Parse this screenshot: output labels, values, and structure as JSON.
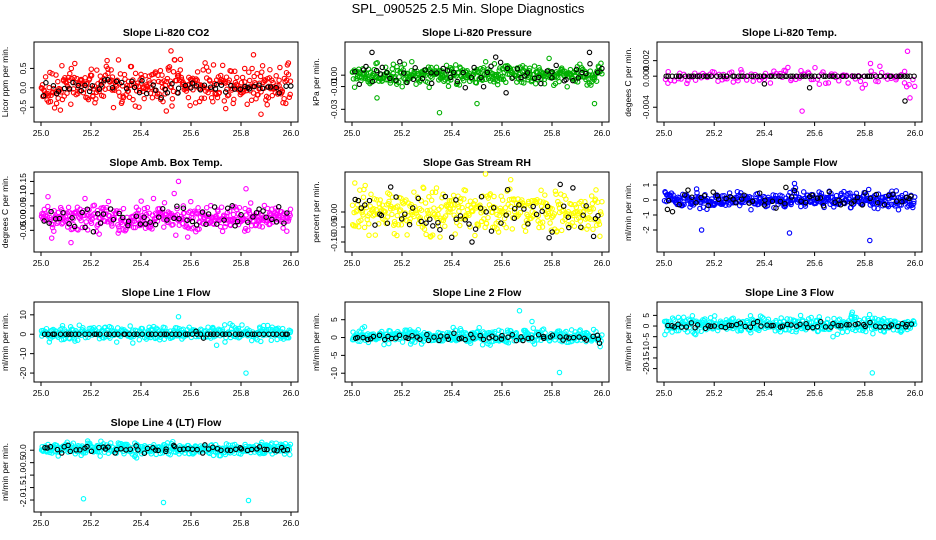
{
  "page": {
    "title": "SPL_090525  2.5 Min. Slope Diagnostics"
  },
  "chart_data": [
    {
      "type": "scatter",
      "title": "Slope Li-820 CO2",
      "xlabel": "",
      "ylabel": "Licor ppm per min.",
      "xlim": [
        25.0,
        26.0
      ],
      "ylim": [
        -0.7,
        1.0
      ],
      "xticks": [
        "25.0",
        "25.2",
        "25.4",
        "25.6",
        "25.8",
        "26.0"
      ],
      "yticks": [
        "-0.5",
        "0.0",
        "0.5"
      ],
      "series": [
        {
          "color": "#ff0000",
          "generator": {
            "center": 0.05,
            "spread": 0.25,
            "n": 400,
            "outliers": [
              [
                25.52,
                0.95
              ],
              [
                25.85,
                0.85
              ],
              [
                25.88,
                -0.68
              ]
            ]
          }
        },
        {
          "color": "#000000",
          "generator": {
            "center": 0.0,
            "spread": 0.12,
            "n": 60,
            "outliers": []
          }
        }
      ]
    },
    {
      "type": "scatter",
      "title": "Slope Li-820 Pressure",
      "xlabel": "",
      "ylabel": "kPa per min.",
      "xlim": [
        25.0,
        26.0
      ],
      "ylim": [
        -0.035,
        0.023
      ],
      "xticks": [
        "25.0",
        "25.2",
        "25.4",
        "25.6",
        "25.8",
        "26.0"
      ],
      "yticks": [
        "-0.03",
        "-0.01",
        "0.00"
      ],
      "series": [
        {
          "color": "#00b000",
          "generator": {
            "center": 0.0,
            "spread": 0.004,
            "n": 400,
            "outliers": [
              [
                25.1,
                -0.02
              ],
              [
                25.5,
                -0.025
              ],
              [
                25.97,
                -0.025
              ],
              [
                25.35,
                -0.033
              ]
            ]
          }
        },
        {
          "color": "#000000",
          "generator": {
            "center": 0.002,
            "spread": 0.006,
            "n": 60,
            "outliers": [
              [
                25.08,
                0.02
              ],
              [
                25.95,
                0.02
              ]
            ]
          }
        }
      ]
    },
    {
      "type": "scatter",
      "title": "Slope Li-820 Temp.",
      "xlabel": "",
      "ylabel": "degees C per min.",
      "xlim": [
        25.0,
        26.0
      ],
      "ylim": [
        -0.005,
        0.0035
      ],
      "xticks": [
        "25.0",
        "25.2",
        "25.4",
        "25.6",
        "25.8",
        "26.0"
      ],
      "yticks": [
        "-0.004",
        "0.000",
        "0.002"
      ],
      "series": [
        {
          "color": "#ff00ff",
          "generator": {
            "center": 0.0,
            "spread": 0.0006,
            "n": 120,
            "outliers": [
              [
                25.97,
                0.0032
              ],
              [
                25.98,
                -0.0028
              ],
              [
                25.55,
                -0.0045
              ]
            ]
          }
        },
        {
          "color": "#000000",
          "generator": {
            "center": 0.0,
            "spread": 0.0,
            "n": 80,
            "outliers": [
              [
                25.4,
                -0.001
              ],
              [
                25.58,
                -0.0015
              ],
              [
                25.96,
                -0.0032
              ]
            ]
          }
        }
      ]
    },
    {
      "type": "scatter",
      "title": "Slope Amb. Box Temp.",
      "xlabel": "",
      "ylabel": "degrees C per min.",
      "xlim": [
        25.0,
        26.0
      ],
      "ylim": [
        -0.11,
        0.16
      ],
      "xticks": [
        "25.0",
        "25.2",
        "25.4",
        "25.6",
        "25.8",
        "26.0"
      ],
      "yticks": [
        "-0.05",
        "0.00",
        "0.05",
        "0.10",
        "0.15"
      ],
      "series": [
        {
          "color": "#ff00ff",
          "generator": {
            "center": 0.0,
            "spread": 0.03,
            "n": 400,
            "outliers": [
              [
                25.55,
                0.15
              ],
              [
                25.82,
                0.12
              ],
              [
                25.12,
                -0.1
              ]
            ]
          }
        },
        {
          "color": "#000000",
          "generator": {
            "center": 0.0,
            "spread": 0.025,
            "n": 60,
            "outliers": []
          }
        }
      ]
    },
    {
      "type": "scatter",
      "title": "Slope Gas Stream RH",
      "xlabel": "",
      "ylabel": "percent per min.",
      "xlim": [
        25.0,
        26.0
      ],
      "ylim": [
        -0.11,
        0.11
      ],
      "xticks": [
        "25.0",
        "25.2",
        "25.4",
        "25.6",
        "25.8",
        "26.0"
      ],
      "yticks": [
        "-0.10",
        "-0.05",
        "0.00"
      ],
      "series": [
        {
          "color": "#ffff00",
          "generator": {
            "center": 0.0,
            "spread": 0.035,
            "n": 400,
            "outliers": []
          }
        },
        {
          "color": "#000000",
          "generator": {
            "center": 0.0,
            "spread": 0.035,
            "n": 60,
            "outliers": [
              [
                25.48,
                -0.1
              ]
            ]
          }
        }
      ]
    },
    {
      "type": "scatter",
      "title": "Slope Sample Flow",
      "xlabel": "",
      "ylabel": "ml/min per min.",
      "xlim": [
        25.0,
        26.0
      ],
      "ylim": [
        -3.0,
        1.4
      ],
      "xticks": [
        "25.0",
        "25.2",
        "25.4",
        "25.6",
        "25.8",
        "26.0"
      ],
      "yticks": [
        "-2",
        "-1",
        "0",
        "1"
      ],
      "series": [
        {
          "color": "#0000ff",
          "generator": {
            "center": 0.0,
            "spread": 0.25,
            "n": 400,
            "outliers": [
              [
                25.15,
                -2.0
              ],
              [
                25.5,
                -2.2
              ],
              [
                25.82,
                -2.7
              ],
              [
                25.52,
                1.1
              ]
            ]
          }
        },
        {
          "color": "#000000",
          "generator": {
            "center": 0.05,
            "spread": 0.35,
            "n": 60,
            "outliers": []
          }
        }
      ]
    },
    {
      "type": "scatter",
      "title": "Slope Line 1 Flow",
      "xlabel": "",
      "ylabel": "ml/min per min.",
      "xlim": [
        25.0,
        26.0
      ],
      "ylim": [
        -21.0,
        13.0
      ],
      "xticks": [
        "25.0",
        "25.2",
        "25.4",
        "25.6",
        "25.8",
        "26.0"
      ],
      "yticks": [
        "-20",
        "-10",
        "0",
        "10"
      ],
      "series": [
        {
          "color": "#00ffff",
          "generator": {
            "center": 0.5,
            "spread": 1.8,
            "n": 400,
            "outliers": [
              [
                25.82,
                -20.0
              ],
              [
                25.55,
                9.0
              ]
            ]
          }
        },
        {
          "color": "#000000",
          "generator": {
            "center": 0.0,
            "spread": 0.0,
            "n": 60,
            "outliers": [
              [
                25.65,
                -2.0
              ],
              [
                25.62,
                1.5
              ]
            ]
          }
        }
      ]
    },
    {
      "type": "scatter",
      "title": "Slope Line 2 Flow",
      "xlabel": "",
      "ylabel": "ml/min per min.",
      "xlim": [
        25.0,
        26.0
      ],
      "ylim": [
        -10.5,
        8.0
      ],
      "xticks": [
        "25.0",
        "25.2",
        "25.4",
        "25.6",
        "25.8",
        "26.0"
      ],
      "yticks": [
        "-10",
        "-5",
        "0",
        "5"
      ],
      "series": [
        {
          "color": "#00ffff",
          "generator": {
            "center": 0.3,
            "spread": 0.9,
            "n": 400,
            "outliers": [
              [
                25.67,
                7.5
              ],
              [
                25.72,
                4.5
              ],
              [
                25.83,
                -9.8
              ],
              [
                25.05,
                3.0
              ]
            ]
          }
        },
        {
          "color": "#000000",
          "generator": {
            "center": 0.0,
            "spread": 0.5,
            "n": 60,
            "outliers": [
              [
                25.99,
                -1.6
              ]
            ]
          }
        }
      ]
    },
    {
      "type": "scatter",
      "title": "Slope Line 3 Flow",
      "xlabel": "",
      "ylabel": "ml/min per min.",
      "xlim": [
        25.0,
        26.0
      ],
      "ylim": [
        -23.0,
        8.0
      ],
      "xticks": [
        "25.0",
        "25.2",
        "25.4",
        "25.6",
        "25.8",
        "26.0"
      ],
      "yticks": [
        "-20",
        "-15",
        "-10",
        "-5",
        "0",
        "5"
      ],
      "series": [
        {
          "color": "#00ffff",
          "generator": {
            "center": 0.5,
            "spread": 1.8,
            "n": 400,
            "outliers": [
              [
                25.83,
                -22.0
              ],
              [
                25.75,
                6.5
              ]
            ]
          }
        },
        {
          "color": "#000000",
          "generator": {
            "center": 0.2,
            "spread": 0.8,
            "n": 60,
            "outliers": []
          }
        }
      ]
    },
    {
      "type": "scatter",
      "title": "Slope Line 4 (LT) Flow",
      "xlabel": "",
      "ylabel": "ml/min per min.",
      "xlim": [
        25.0,
        26.0
      ],
      "ylim": [
        -2.2,
        0.45
      ],
      "xticks": [
        "25.0",
        "25.2",
        "25.4",
        "25.6",
        "25.8",
        "26.0"
      ],
      "yticks": [
        "-2.0",
        "-1.5",
        "-1.0",
        "-0.5",
        "0.0"
      ],
      "series": [
        {
          "color": "#00ffff",
          "generator": {
            "center": 0.05,
            "spread": 0.12,
            "n": 400,
            "outliers": [
              [
                25.17,
                -1.95
              ],
              [
                25.49,
                -2.1
              ],
              [
                25.83,
                -2.02
              ]
            ]
          }
        },
        {
          "color": "#000000",
          "generator": {
            "center": 0.05,
            "spread": 0.08,
            "n": 60,
            "outliers": []
          }
        }
      ]
    }
  ]
}
